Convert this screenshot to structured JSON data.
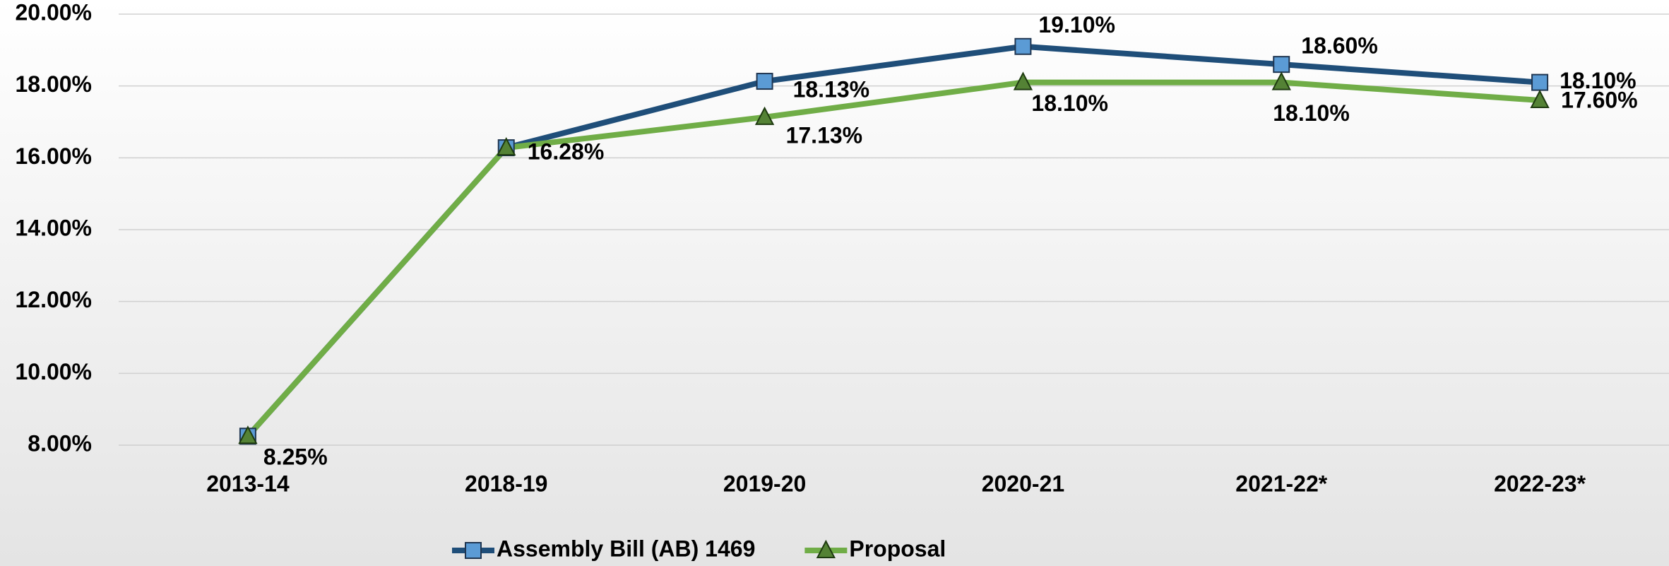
{
  "chart_data": {
    "type": "line",
    "categories": [
      "2013-14",
      "2018-19",
      "2019-20",
      "2020-21",
      "2021-22*",
      "2022-23*"
    ],
    "ylim": [
      8,
      20
    ],
    "yticks": [
      {
        "value": 8,
        "label": "8.00%"
      },
      {
        "value": 10,
        "label": "10.00%"
      },
      {
        "value": 12,
        "label": "12.00%"
      },
      {
        "value": 14,
        "label": "14.00%"
      },
      {
        "value": 16,
        "label": "16.00%"
      },
      {
        "value": 18,
        "label": "18.00%"
      },
      {
        "value": 20,
        "label": "20.00%"
      }
    ],
    "grid": true,
    "legend": "bottom",
    "series": [
      {
        "name": "Assembly Bill (AB) 1469",
        "color": "#1f4e79",
        "marker_color": "#5b9bd5",
        "marker": "square",
        "values": [
          8.25,
          16.28,
          18.13,
          19.1,
          18.6,
          18.1
        ],
        "value_labels": [
          "8.25%",
          "16.28%",
          "18.13%",
          "19.10%",
          "18.60%",
          "18.10%"
        ]
      },
      {
        "name": "Proposal",
        "color": "#70ad47",
        "marker_color": "#548235",
        "marker": "triangle",
        "values": [
          8.25,
          16.28,
          17.13,
          18.1,
          18.1,
          17.6
        ],
        "value_labels": [
          null,
          null,
          "17.13%",
          "18.10%",
          "18.10%",
          "17.60%"
        ]
      }
    ]
  }
}
